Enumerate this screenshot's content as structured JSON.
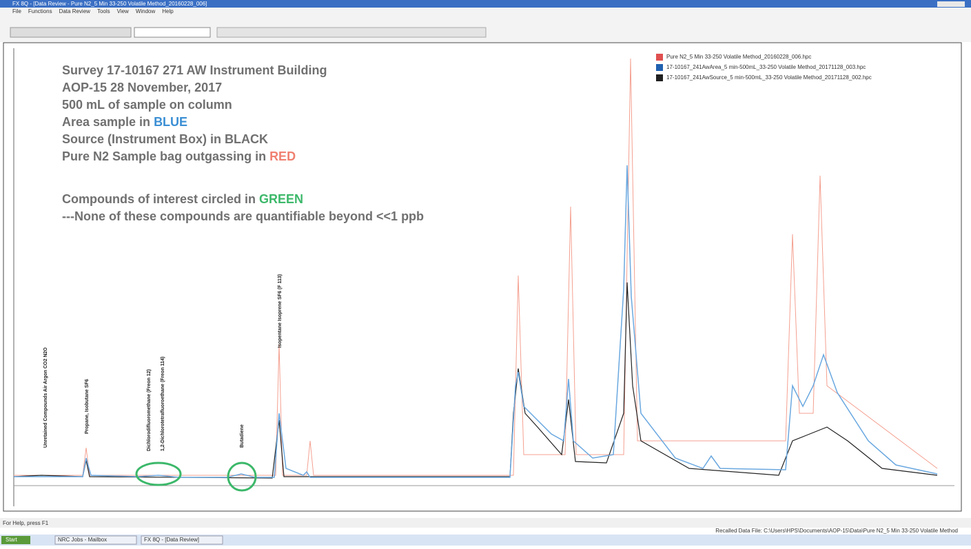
{
  "window": {
    "title": "FX 8Q - [Data Review - Pure N2_5 Min 33-250 Volatile Method_20160228_006]",
    "menu": [
      "File",
      "Functions",
      "Data Review",
      "Tools",
      "View",
      "Window",
      "Help"
    ]
  },
  "annotation": {
    "lines": [
      {
        "text": "Survey 17-10167  271 AW Instrument Building"
      },
      {
        "text": "AOP-15 28 November, 2017"
      },
      {
        "text": "500 mL of sample on column"
      },
      {
        "text": "Area sample in ",
        "highlight": "BLUE",
        "color": "#3b8fd4"
      },
      {
        "text": "Source (Instrument Box) in BLACK"
      },
      {
        "text": "Pure N2 Sample bag outgassing in ",
        "highlight": "RED",
        "color": "#f08070"
      },
      {
        "text": "Compounds of interest circled in ",
        "highlight": "GREEN",
        "color": "#3cb86a"
      },
      {
        "text": "---None of these compounds are quantifiable beyond <<1 ppb"
      }
    ]
  },
  "legend": [
    {
      "name": "Pure N2_5 Min 33-250 Volatile Method_20160228_006.hpc",
      "color": "#e05050"
    },
    {
      "name": "17-10167_241AwArea_5 min-500mL_33-250 Volatile Method_20171128_003.hpc",
      "color": "#2060b0"
    },
    {
      "name": "17-10167_241AwSource_5 min-500mL_33-250 Volatile Method_20171128_002.hpc",
      "color": "#202020"
    }
  ],
  "peak_labels": [
    "Unretained Compounds Air Argon CO2 N2O",
    "Propane, Isobutane SF6",
    "Dichlorodifluoromethane (Freon 12)",
    "1,2-Dichlorotetrafluoroethane (Freon 114)",
    "Butadiene",
    "Isopentane Isoprene SF6 (F 113)"
  ],
  "status_bar": {
    "left": "For Help, press F1",
    "right": "Recalled Data File: C:\\Users\\HPS\\Documents\\AOP-15\\Data\\Pure N2_5 Min 33-250 Volatile Method"
  },
  "taskbar": {
    "start": "Start",
    "items": [
      "NRC Jobs - Mailbox",
      "FX 8Q - [Data Review]"
    ]
  }
}
